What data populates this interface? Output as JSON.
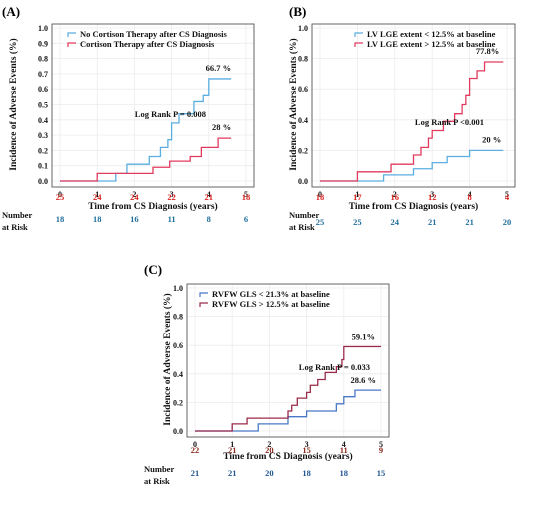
{
  "chart_data": [
    {
      "type": "line",
      "subtype": "kaplan-meier-step",
      "panel": "(A)",
      "xlabel": "Time from CS Diagnosis (years)",
      "ylabel": "Incidence of Adverse Events (%)",
      "xlim": [
        0,
        5
      ],
      "ylim": [
        0,
        1.0
      ],
      "x_ticks": [
        "0",
        "1",
        "2",
        "3",
        "4",
        "5"
      ],
      "y_ticks": [
        "0.0",
        "0.1",
        "0.2",
        "0.3",
        "0.4",
        "0.5",
        "0.6",
        "0.7",
        "0.8",
        "0.9",
        "1.0"
      ],
      "grid": true,
      "legend_position": "top-left",
      "annotations": {
        "log_rank": "Log Rank P = 0.008"
      },
      "series": [
        {
          "name": "No Cortison Therapy after CS Diagnosis",
          "color": "#5aaee0",
          "end_label": "66.7 %",
          "steps": [
            [
              0,
              0
            ],
            [
              1,
              0
            ],
            [
              1.5,
              0.05
            ],
            [
              1.8,
              0.11
            ],
            [
              2.4,
              0.16
            ],
            [
              2.7,
              0.22
            ],
            [
              2.9,
              0.27
            ],
            [
              3.0,
              0.38
            ],
            [
              3.2,
              0.44
            ],
            [
              3.6,
              0.52
            ],
            [
              3.85,
              0.56
            ],
            [
              4.0,
              0.667
            ],
            [
              4.6,
              0.667
            ]
          ]
        },
        {
          "name": "Cortison Therapy after CS Diagnosis",
          "color": "#e23a5e",
          "end_label": "28 %",
          "steps": [
            [
              0,
              0
            ],
            [
              1,
              0.05
            ],
            [
              2.5,
              0.09
            ],
            [
              2.95,
              0.13
            ],
            [
              3.5,
              0.16
            ],
            [
              3.8,
              0.22
            ],
            [
              4.25,
              0.28
            ],
            [
              4.6,
              0.28
            ]
          ]
        }
      ],
      "risk_table": {
        "title_lines": [
          "Number",
          "at Risk"
        ],
        "rows": [
          {
            "color": "#d9241f",
            "values": [
              "25",
              "24",
              "24",
              "22",
              "21",
              "18"
            ]
          },
          {
            "color": "#1f6e9c",
            "values": [
              "18",
              "18",
              "16",
              "11",
              "8",
              "6"
            ]
          }
        ]
      }
    },
    {
      "type": "line",
      "subtype": "kaplan-meier-step",
      "panel": "(B)",
      "xlabel": "Time from CS Diagnosis (years)",
      "ylabel": "Incidence of Adverse Events (%)",
      "xlim": [
        0,
        5
      ],
      "ylim": [
        0,
        1.0
      ],
      "x_ticks": [
        "0",
        "1",
        "2",
        "3",
        "4",
        "5"
      ],
      "y_ticks": [
        "0.0",
        "0.2",
        "0.4",
        "0.6",
        "0.8",
        "1.0"
      ],
      "grid": true,
      "legend_position": "top-left",
      "annotations": {
        "log_rank": "Log Rank P <0.001"
      },
      "series": [
        {
          "name": "LV LGE extent < 12.5% at baseline",
          "color": "#5aaee0",
          "end_label": "20 %",
          "steps": [
            [
              0,
              0
            ],
            [
              1.7,
              0.04
            ],
            [
              2.5,
              0.08
            ],
            [
              3.0,
              0.12
            ],
            [
              3.4,
              0.16
            ],
            [
              4.0,
              0.2
            ],
            [
              4.9,
              0.2
            ]
          ]
        },
        {
          "name": "LV LGE extent > 12.5% at baseline",
          "color": "#e23a5e",
          "end_label": "77.8%",
          "steps": [
            [
              0,
              0
            ],
            [
              1,
              0.06
            ],
            [
              1.9,
              0.11
            ],
            [
              2.5,
              0.17
            ],
            [
              2.7,
              0.22
            ],
            [
              2.9,
              0.28
            ],
            [
              3.0,
              0.33
            ],
            [
              3.3,
              0.39
            ],
            [
              3.6,
              0.44
            ],
            [
              3.8,
              0.5
            ],
            [
              3.9,
              0.56
            ],
            [
              4.0,
              0.67
            ],
            [
              4.2,
              0.72
            ],
            [
              4.4,
              0.778
            ],
            [
              4.9,
              0.778
            ]
          ]
        }
      ],
      "risk_table": {
        "title_lines": [
          "Number",
          "at Risk"
        ],
        "rows": [
          {
            "color": "#d9241f",
            "values": [
              "18",
              "17",
              "16",
              "12",
              "8",
              "4"
            ]
          },
          {
            "color": "#1f6e9c",
            "values": [
              "25",
              "25",
              "24",
              "21",
              "21",
              "20"
            ]
          }
        ]
      }
    },
    {
      "type": "line",
      "subtype": "kaplan-meier-step",
      "panel": "(C)",
      "xlabel": "Time from CS Diagnosis (years)",
      "ylabel": "Incidence of Adverse Events (%)",
      "xlim": [
        0,
        5
      ],
      "ylim": [
        0,
        1.0
      ],
      "x_ticks": [
        "0",
        "1",
        "2",
        "3",
        "4",
        "5"
      ],
      "y_ticks": [
        "0.0",
        "0.2",
        "0.4",
        "0.6",
        "0.8",
        "1.0"
      ],
      "grid": true,
      "legend_position": "top-left",
      "annotations": {
        "log_rank": "Log Rank P = 0.033"
      },
      "series": [
        {
          "name": "RVFW GLS < 21.3% at baseline",
          "color": "#4a78c8",
          "end_label": "28.6 %",
          "steps": [
            [
              0,
              0
            ],
            [
              1.7,
              0.05
            ],
            [
              2.5,
              0.1
            ],
            [
              3.0,
              0.14
            ],
            [
              3.8,
              0.19
            ],
            [
              4.0,
              0.24
            ],
            [
              4.3,
              0.286
            ],
            [
              5.0,
              0.286
            ]
          ]
        },
        {
          "name": "RVFW GLS > 12.5% at baseline",
          "color": "#9b2a4a",
          "end_label": "59.1%",
          "steps": [
            [
              0,
              0
            ],
            [
              1,
              0.05
            ],
            [
              1.4,
              0.09
            ],
            [
              2.5,
              0.14
            ],
            [
              2.6,
              0.18
            ],
            [
              2.75,
              0.23
            ],
            [
              3.0,
              0.27
            ],
            [
              3.1,
              0.32
            ],
            [
              3.3,
              0.36
            ],
            [
              3.5,
              0.41
            ],
            [
              3.8,
              0.45
            ],
            [
              3.95,
              0.5
            ],
            [
              4.0,
              0.591
            ],
            [
              5.0,
              0.591
            ]
          ]
        }
      ],
      "risk_table": {
        "title_lines": [
          "Number",
          "at Risk"
        ],
        "rows": [
          {
            "color": "#8b2a1e",
            "values": [
              "22",
              "21",
              "20",
              "15",
              "11",
              "9"
            ]
          },
          {
            "color": "#1f5590",
            "values": [
              "21",
              "21",
              "20",
              "18",
              "18",
              "15"
            ]
          }
        ]
      }
    }
  ]
}
